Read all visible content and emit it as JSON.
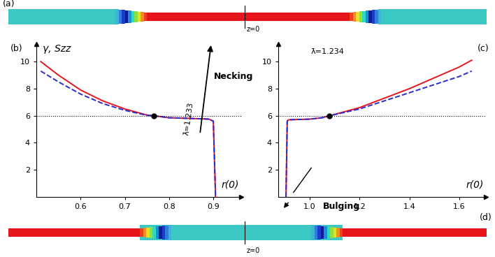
{
  "tubes": [
    {
      "label": "(a)",
      "center_text": "z=0",
      "shape": "thin_middle"
    },
    {
      "label": "(d)",
      "center_text": "z=0",
      "shape": "thick_middle"
    }
  ],
  "chart_data": [
    {
      "type": "line",
      "panel_label": "(b)",
      "x_label": "r(0)",
      "y_label": "γ, Szz",
      "xlim": [
        0.5,
        0.963
      ],
      "ylim": [
        0,
        11.3
      ],
      "xticks": [
        0.6,
        0.7,
        0.8,
        0.9
      ],
      "yticks": [
        2,
        4,
        6,
        8,
        10
      ],
      "series": [
        {
          "color": "#e8141c",
          "line_style": "solid",
          "x": [
            0.51,
            0.55,
            0.6,
            0.65,
            0.7,
            0.75,
            0.765,
            0.8,
            0.85,
            0.89,
            0.9,
            0.905
          ],
          "values": [
            10.0,
            9.0,
            7.9,
            7.1,
            6.5,
            6.05,
            6.0,
            5.85,
            5.8,
            5.75,
            5.6,
            0
          ]
        },
        {
          "color": "#2a2ad0",
          "line_style": "dashed",
          "x": [
            0.51,
            0.55,
            0.6,
            0.65,
            0.7,
            0.75,
            0.765,
            0.8,
            0.85,
            0.89,
            0.9,
            0.905
          ],
          "values": [
            9.3,
            8.5,
            7.6,
            6.9,
            6.4,
            6.03,
            6.0,
            5.85,
            5.8,
            5.75,
            5.6,
            0
          ]
        }
      ],
      "reference_line": 6,
      "point": [
        0.765,
        6
      ],
      "annotations": [
        {
          "text": "λ̄=1.233"
        },
        {
          "text": "Necking"
        }
      ]
    },
    {
      "type": "line",
      "panel_label": "(c)",
      "x_label": "r(0)",
      "xlim": [
        0.874,
        1.707
      ],
      "ylim": [
        0,
        11.3
      ],
      "xticks": [
        1.0,
        1.2,
        1.4,
        1.6
      ],
      "yticks": [
        2,
        4,
        6,
        8,
        10
      ],
      "series": [
        {
          "color": "#e8141c",
          "line_style": "solid",
          "x": [
            0.905,
            0.91,
            0.915,
            1.0,
            1.05,
            1.08,
            1.2,
            1.3,
            1.4,
            1.5,
            1.6,
            1.65
          ],
          "values": [
            0,
            5.6,
            5.7,
            5.75,
            5.85,
            6.0,
            6.6,
            7.3,
            8.0,
            8.8,
            9.6,
            10.1
          ]
        },
        {
          "color": "#2a2ad0",
          "line_style": "dashed",
          "x": [
            0.905,
            0.91,
            0.915,
            1.0,
            1.05,
            1.08,
            1.2,
            1.3,
            1.4,
            1.5,
            1.6,
            1.65
          ],
          "values": [
            0,
            5.6,
            5.7,
            5.75,
            5.85,
            6.0,
            6.5,
            7.1,
            7.7,
            8.3,
            8.9,
            9.3
          ]
        }
      ],
      "reference_line": 6,
      "point": [
        1.08,
        6
      ],
      "annotations": [
        {
          "text": "λ̄=1.234"
        },
        {
          "text": "Bulging"
        }
      ]
    }
  ]
}
